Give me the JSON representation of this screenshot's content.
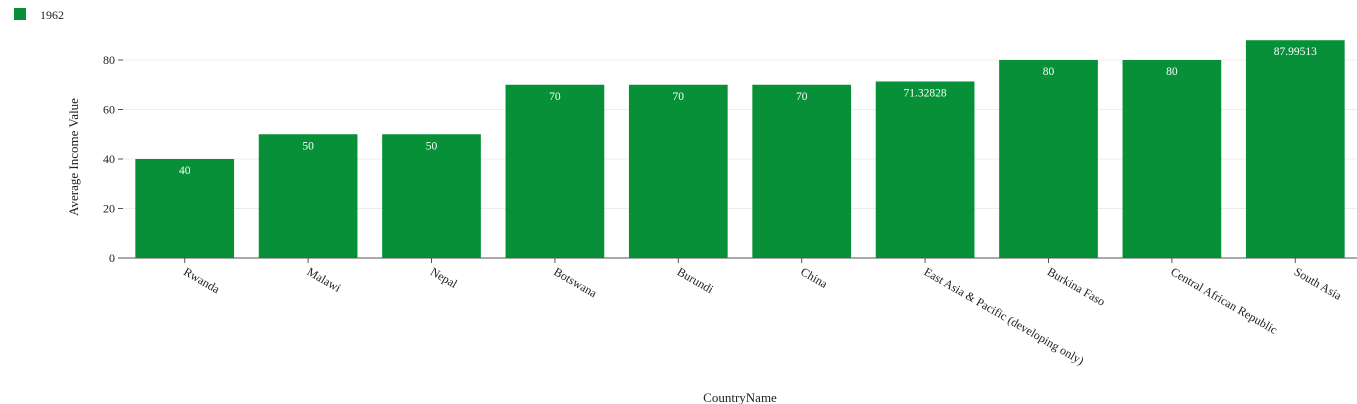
{
  "chart_data": {
    "type": "bar",
    "categories": [
      "Rwanda",
      "Malawi",
      "Nepal",
      "Botswana",
      "Burundi",
      "China",
      "East Asia & Pacific (developing only)",
      "Burkina Faso",
      "Central African Republic",
      "South Asia"
    ],
    "series": [
      {
        "name": "1962",
        "values": [
          40,
          50,
          50,
          70,
          70,
          70,
          71.32828,
          80,
          80,
          87.99513
        ]
      }
    ],
    "data_labels": [
      "40",
      "50",
      "50",
      "70",
      "70",
      "70",
      "71.32828",
      "80",
      "80",
      "87.99513"
    ],
    "xlabel": "CountryName",
    "ylabel": "Average Income Value",
    "ylim": [
      0,
      90
    ],
    "yticks": [
      0,
      20,
      40,
      60,
      80
    ],
    "ytick_labels": [
      "0",
      "20",
      "40",
      "60",
      "80"
    ],
    "grid": true,
    "legend_position": "top-left",
    "colors": {
      "bar": "#079037",
      "label": "#ffffff"
    }
  }
}
